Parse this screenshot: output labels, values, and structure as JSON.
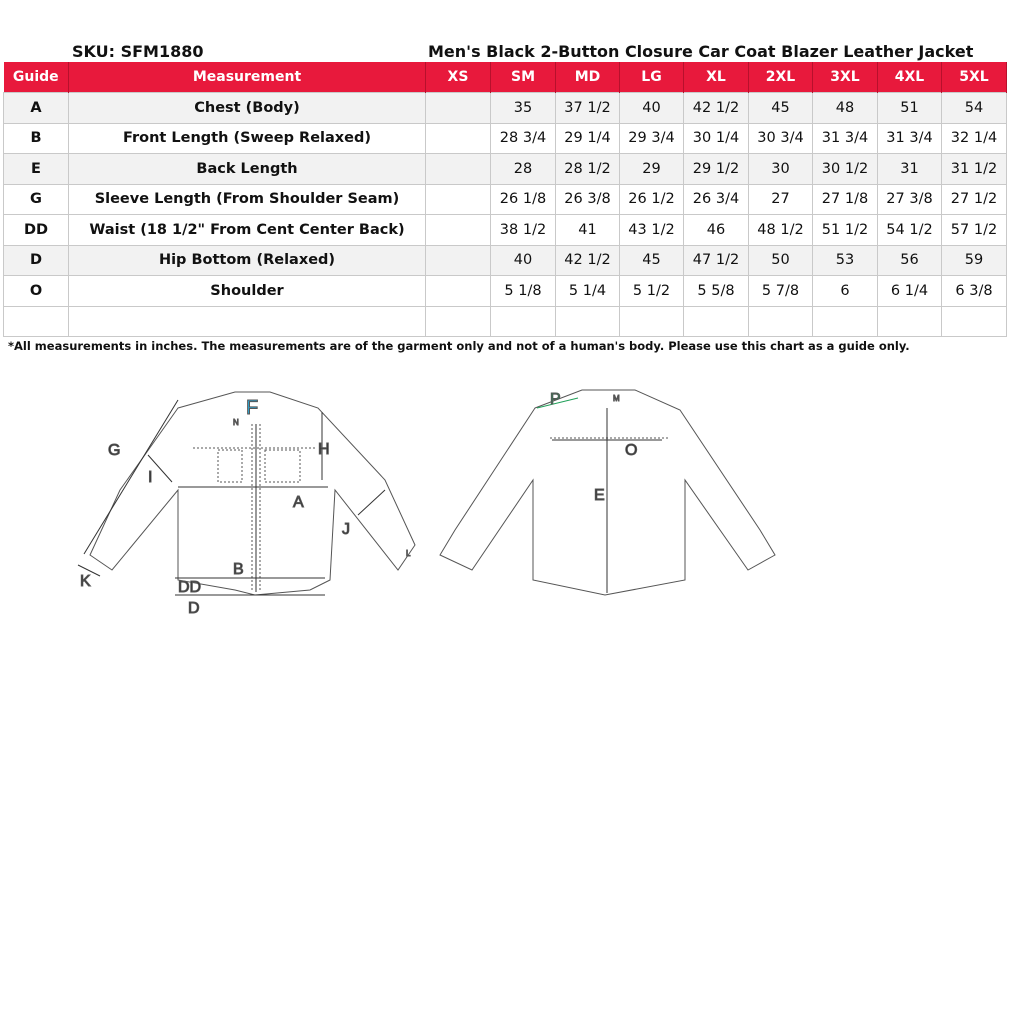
{
  "header": {
    "sku": "SKU: SFM1880",
    "title": "Men's Black 2-Button Closure Car Coat Blazer Leather Jacket"
  },
  "table": {
    "columns": [
      "Guide",
      "Measurement",
      "XS",
      "SM",
      "MD",
      "LG",
      "XL",
      "2XL",
      "3XL",
      "4XL",
      "5XL"
    ],
    "rows": [
      {
        "guide": "A",
        "measurement": "Chest (Body)",
        "values": [
          "",
          "35",
          "37 1/2",
          "40",
          "42 1/2",
          "45",
          "48",
          "51",
          "54"
        ]
      },
      {
        "guide": "B",
        "measurement": "Front Length (Sweep Relaxed)",
        "values": [
          "",
          "28 3/4",
          "29 1/4",
          "29 3/4",
          "30 1/4",
          "30 3/4",
          "31 3/4",
          "31 3/4",
          "32 1/4"
        ]
      },
      {
        "guide": "E",
        "measurement": "Back Length",
        "values": [
          "",
          "28",
          "28 1/2",
          "29",
          "29 1/2",
          "30",
          "30 1/2",
          "31",
          "31 1/2"
        ]
      },
      {
        "guide": "G",
        "measurement": "Sleeve Length (From Shoulder Seam)",
        "values": [
          "",
          "26 1/8",
          "26 3/8",
          "26 1/2",
          "26 3/4",
          "27",
          "27 1/8",
          "27 3/8",
          "27 1/2"
        ]
      },
      {
        "guide": "DD",
        "measurement": "Waist (18 1/2\" From  Cent Center Back)",
        "values": [
          "",
          "38 1/2",
          "41",
          "43 1/2",
          "46",
          "48 1/2",
          "51 1/2",
          "54 1/2",
          "57 1/2"
        ]
      },
      {
        "guide": "D",
        "measurement": "Hip Bottom (Relaxed)",
        "values": [
          "",
          "40",
          "42 1/2",
          "45",
          "47 1/2",
          "50",
          "53",
          "56",
          "59"
        ]
      },
      {
        "guide": "O",
        "measurement": "Shoulder",
        "values": [
          "",
          "5 1/8",
          "5 1/4",
          "5 1/2",
          "5 5/8",
          "5 7/8",
          "6",
          "6 1/4",
          "6 3/8"
        ]
      },
      {
        "guide": "",
        "measurement": "",
        "values": [
          "",
          "",
          "",
          "",
          "",
          "",
          "",
          "",
          ""
        ]
      }
    ]
  },
  "note": "*All measurements in inches. The measurements are of the garment only and not of a human's body. Please use this chart as a guide only.",
  "colors": {
    "header_bg": "#e8193c",
    "stripe": "#f2f2f2",
    "label_F": "#29a8d8",
    "label_P": "#21a05a",
    "label_N": "#d0202a"
  },
  "diagram_front": {
    "labels": {
      "F": "F",
      "N": "N",
      "G": "G",
      "H": "H",
      "I": "I",
      "A": "A",
      "J": "J",
      "B": "B",
      "DD": "DD",
      "D": "D",
      "K": "K",
      "L": "L"
    }
  },
  "diagram_back": {
    "labels": {
      "P": "P",
      "M": "M",
      "O": "O",
      "E": "E"
    }
  }
}
